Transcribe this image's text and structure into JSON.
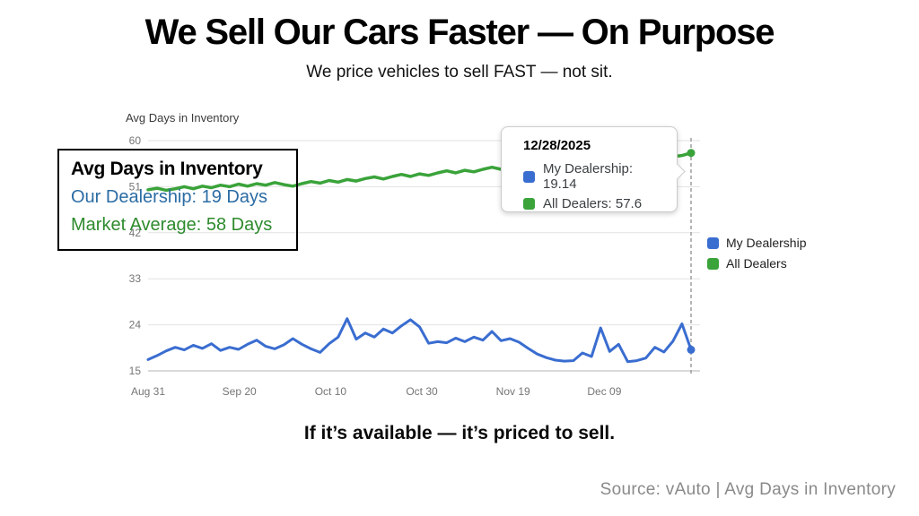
{
  "header": {
    "title": "We Sell Our Cars Faster — On Purpose",
    "subtitle": "We price vehicles to sell FAST — not sit."
  },
  "overlay": {
    "title": "Avg Days in Inventory",
    "our_dealership": "Our Dealership: 19 Days",
    "market_average": "Market Average: 58 Days"
  },
  "tooltip": {
    "date": "12/28/2025",
    "my_dealership": "My Dealership: 19.14",
    "all_dealers": "All Dealers: 57.6"
  },
  "legend": {
    "position": "right",
    "items": [
      {
        "label": "My Dealership",
        "color": "#3a6dd0"
      },
      {
        "label": "All Dealers",
        "color": "#3aa33a"
      }
    ]
  },
  "footer": {
    "tagline": "If it’s available — it’s priced to sell.",
    "source": "Source: vAuto | Avg Days in Inventory"
  },
  "colors": {
    "dealership_blue": "#3a6dd0",
    "dealers_green": "#3aa33a",
    "overlay_blue": "#2b6ca4",
    "overlay_green": "#2e8b2e",
    "axis_gray": "#757575",
    "grid_gray": "#e2e2e2",
    "baseline_gray": "#b3b3b3",
    "hover_line_gray": "#9e9e9e"
  },
  "chart_data": {
    "type": "line",
    "title": "Avg Days in Inventory",
    "xlabel": "",
    "ylabel": "Avg Days in Inventory",
    "ylim": [
      15,
      60
    ],
    "y_ticks": [
      15,
      24,
      33,
      42,
      51,
      60
    ],
    "x_ticks": [
      "Aug 31",
      "Sep 20",
      "Oct 10",
      "Oct 30",
      "Nov 19",
      "Dec 09"
    ],
    "x_tick_days": [
      0,
      20,
      40,
      60,
      80,
      100
    ],
    "days_total": 119,
    "x_end_date": "12/28/2025",
    "grid": true,
    "legend_position": "right",
    "hover_point": {
      "date": "12/28/2025",
      "my_dealership": 19.14,
      "all_dealers": 57.6
    },
    "series": [
      {
        "name": "My Dealership",
        "color": "#3a6dd0",
        "final_value": 19.14,
        "values": [
          17.2,
          18.0,
          18.9,
          19.6,
          19.1,
          20.0,
          19.4,
          20.3,
          19.0,
          19.6,
          19.2,
          20.2,
          21.0,
          19.8,
          19.3,
          20.1,
          21.3,
          20.2,
          19.3,
          18.6,
          20.3,
          21.6,
          25.2,
          21.2,
          22.4,
          21.6,
          23.2,
          22.4,
          23.8,
          25.0,
          23.6,
          20.4,
          20.7,
          20.5,
          21.4,
          20.7,
          21.6,
          21.0,
          22.7,
          20.9,
          21.3,
          20.6,
          19.4,
          18.3,
          17.6,
          17.1,
          16.9,
          17.0,
          18.5,
          17.8,
          23.4,
          18.8,
          20.2,
          16.8,
          17.0,
          17.5,
          19.6,
          18.7,
          20.8,
          24.2,
          19.14
        ]
      },
      {
        "name": "All Dealers",
        "color": "#3aa33a",
        "final_value": 57.6,
        "values": [
          50.4,
          50.7,
          50.3,
          50.6,
          51.0,
          50.6,
          51.1,
          50.8,
          51.3,
          51.0,
          51.5,
          51.1,
          51.6,
          51.3,
          51.8,
          51.4,
          51.1,
          51.6,
          52.0,
          51.7,
          52.2,
          51.9,
          52.4,
          52.1,
          52.6,
          52.9,
          52.5,
          53.0,
          53.4,
          53.0,
          53.5,
          53.2,
          53.7,
          54.1,
          53.7,
          54.2,
          53.9,
          54.4,
          54.8,
          54.4,
          54.9,
          54.6,
          55.1,
          54.8,
          55.3,
          55.7,
          55.3,
          55.8,
          55.5,
          56.0,
          56.3,
          56.0,
          56.3,
          56.1,
          56.5,
          56.3,
          56.6,
          56.4,
          56.9,
          57.1,
          57.6
        ]
      }
    ]
  }
}
